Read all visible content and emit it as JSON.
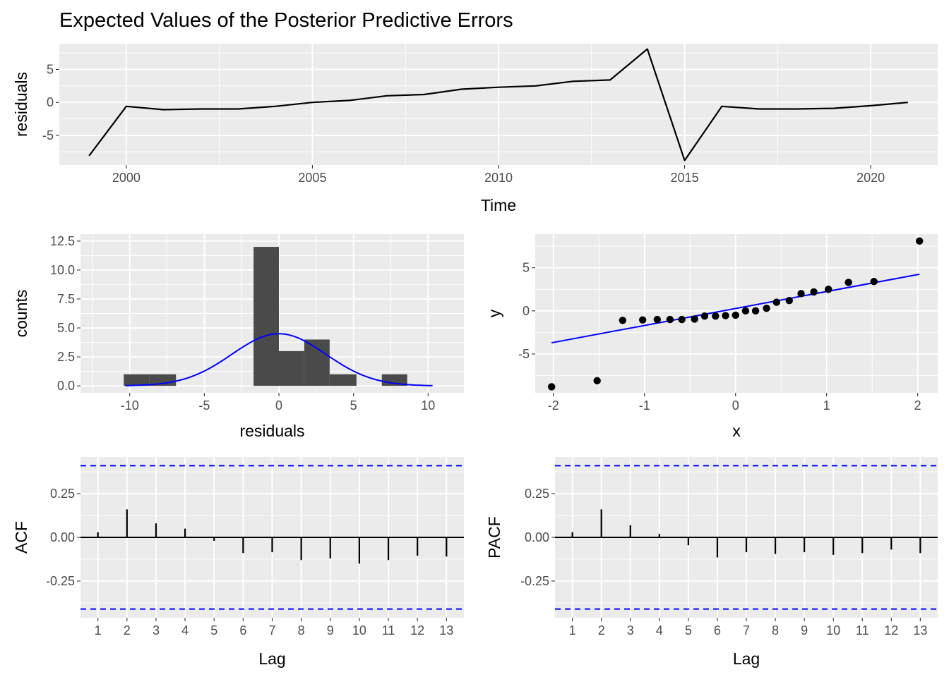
{
  "chart_data": [
    {
      "type": "line",
      "title": "Expected Values of the Posterior Predictive Errors",
      "xlabel": "Time",
      "ylabel": "residuals",
      "xlim": [
        1998.2,
        2021.8
      ],
      "ylim": [
        -9.5,
        8.9
      ],
      "xticks": [
        "2000",
        "2005",
        "2010",
        "2015",
        "2020"
      ],
      "yticks": [
        "-5",
        "0",
        "5"
      ],
      "x": [
        1999,
        2000,
        2001,
        2002,
        2003,
        2004,
        2005,
        2006,
        2007,
        2008,
        2009,
        2010,
        2011,
        2012,
        2013,
        2014,
        2015,
        2016,
        2017,
        2018,
        2019,
        2020,
        2021
      ],
      "y": [
        -8.1,
        -0.6,
        -1.1,
        -1.0,
        -1.0,
        -0.6,
        0.0,
        0.3,
        1.0,
        1.2,
        2.0,
        2.3,
        2.5,
        3.2,
        3.4,
        8.1,
        -8.8,
        -0.6,
        -1.0,
        -1.0,
        -0.9,
        -0.5,
        0.0
      ],
      "line_color": "#000000",
      "grid": true
    },
    {
      "type": "bar",
      "xlabel": "residuals",
      "ylabel": "counts",
      "xlim": [
        -13.3,
        12.4
      ],
      "ylim": [
        -0.6,
        13.1
      ],
      "xticks": [
        "-10",
        "-5",
        "0",
        "5",
        "10"
      ],
      "yticks": [
        "0.0",
        "2.5",
        "5.0",
        "7.5",
        "10.0",
        "12.5"
      ],
      "bins": [
        {
          "x0": -10.4,
          "x1": -8.7,
          "count": 1
        },
        {
          "x0": -8.7,
          "x1": -6.9,
          "count": 1
        },
        {
          "x0": -1.7,
          "x1": 0.0,
          "count": 12
        },
        {
          "x0": 0.0,
          "x1": 1.7,
          "count": 3
        },
        {
          "x0": 1.7,
          "x1": 3.4,
          "count": 4
        },
        {
          "x0": 3.4,
          "x1": 5.2,
          "count": 1
        },
        {
          "x0": 6.9,
          "x1": 8.6,
          "count": 1
        }
      ],
      "density_curve": {
        "mean": 0.0,
        "peak": 4.5,
        "sd": 3.15,
        "from": -10.3,
        "to": 10.3
      },
      "bar_color": "#4a4a4a",
      "curve_color": "#0000ff",
      "grid": true
    },
    {
      "type": "scatter",
      "xlabel": "x",
      "ylabel": "y",
      "xlim": [
        -2.2,
        2.22
      ],
      "ylim": [
        -9.5,
        8.9
      ],
      "xticks": [
        "-2",
        "-1",
        "0",
        "1",
        "2"
      ],
      "yticks": [
        "-5",
        "0",
        "5"
      ],
      "points": [
        [
          -2.02,
          -8.8
        ],
        [
          -1.52,
          -8.1
        ],
        [
          -1.24,
          -1.1
        ],
        [
          -1.02,
          -1.05
        ],
        [
          -0.86,
          -1.0
        ],
        [
          -0.72,
          -1.0
        ],
        [
          -0.59,
          -1.0
        ],
        [
          -0.45,
          -0.95
        ],
        [
          -0.34,
          -0.6
        ],
        [
          -0.22,
          -0.6
        ],
        [
          -0.11,
          -0.55
        ],
        [
          0.0,
          -0.5
        ],
        [
          0.11,
          0.0
        ],
        [
          0.22,
          0.0
        ],
        [
          0.34,
          0.3
        ],
        [
          0.45,
          1.0
        ],
        [
          0.59,
          1.2
        ],
        [
          0.72,
          2.0
        ],
        [
          0.86,
          2.2
        ],
        [
          1.02,
          2.5
        ],
        [
          1.24,
          3.3
        ],
        [
          1.52,
          3.4
        ],
        [
          2.02,
          8.1
        ]
      ],
      "reference_line": {
        "x0": -2.02,
        "y0": -3.7,
        "x1": 2.02,
        "y1": 4.25
      },
      "point_color": "#000000",
      "line_color": "#0000ff",
      "grid": true
    },
    {
      "type": "bar",
      "xlabel": "Lag",
      "ylabel": "ACF",
      "xlim": [
        0.4,
        13.6
      ],
      "ylim": [
        -0.46,
        0.46
      ],
      "yticks": [
        "-0.25",
        "0.00",
        "0.25"
      ],
      "categories": [
        "1",
        "2",
        "3",
        "4",
        "5",
        "6",
        "7",
        "8",
        "9",
        "10",
        "11",
        "12",
        "13"
      ],
      "values": [
        0.03,
        0.16,
        0.08,
        0.05,
        -0.02,
        -0.09,
        -0.085,
        -0.13,
        -0.12,
        -0.15,
        -0.13,
        -0.105,
        -0.11
      ],
      "confidence_limit": 0.41,
      "limit_color": "#0000ff",
      "grid": true
    },
    {
      "type": "bar",
      "xlabel": "Lag",
      "ylabel": "PACF",
      "xlim": [
        0.4,
        13.6
      ],
      "ylim": [
        -0.46,
        0.46
      ],
      "yticks": [
        "-0.25",
        "0.00",
        "0.25"
      ],
      "categories": [
        "1",
        "2",
        "3",
        "4",
        "5",
        "6",
        "7",
        "8",
        "9",
        "10",
        "11",
        "12",
        "13"
      ],
      "values": [
        0.03,
        0.16,
        0.07,
        0.02,
        -0.045,
        -0.115,
        -0.085,
        -0.095,
        -0.085,
        -0.1,
        -0.09,
        -0.07,
        -0.09
      ],
      "confidence_limit": 0.41,
      "limit_color": "#0000ff",
      "grid": true
    }
  ]
}
